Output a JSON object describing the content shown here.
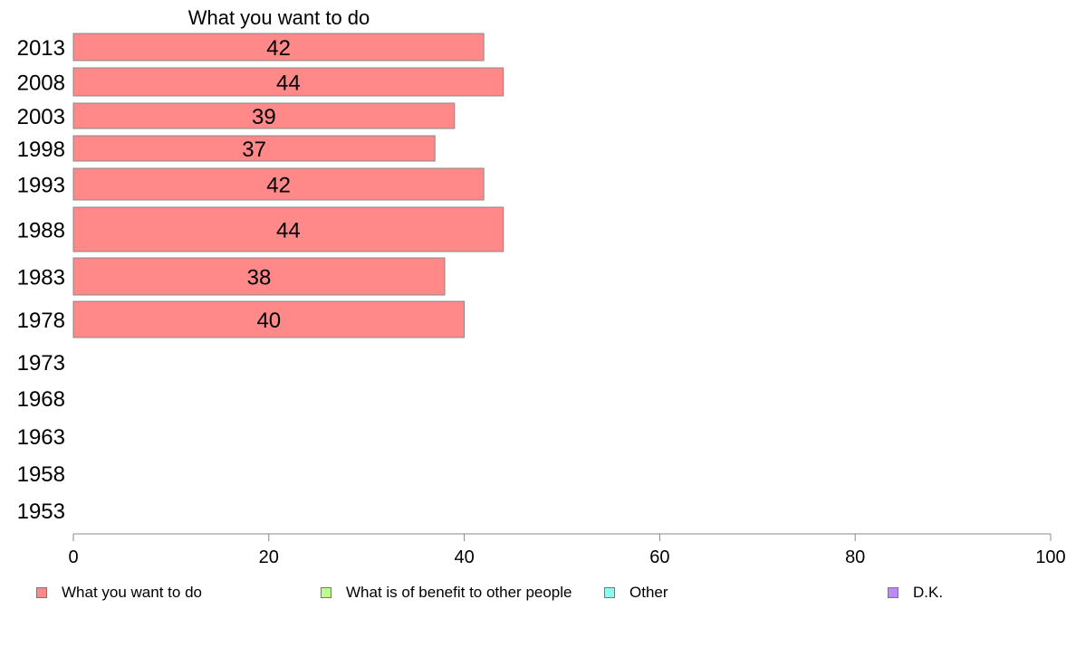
{
  "chart_data": {
    "type": "bar",
    "orientation": "horizontal",
    "title": "What you want to do",
    "categories": [
      "2013",
      "2008",
      "2003",
      "1998",
      "1993",
      "1988",
      "1983",
      "1978",
      "1973",
      "1968",
      "1963",
      "1958",
      "1953"
    ],
    "series": [
      {
        "name": "What you want to do",
        "color": "#ff8888",
        "values": [
          42,
          44,
          39,
          37,
          42,
          44,
          38,
          40,
          null,
          null,
          null,
          null,
          null
        ]
      }
    ],
    "xlim": [
      0,
      100
    ],
    "xticks": [
      0,
      20,
      40,
      60,
      80,
      100
    ],
    "grid": false,
    "legend": {
      "position": "bottom",
      "items": [
        {
          "label": "What you want to do",
          "color": "#ff8888"
        },
        {
          "label": "What is of benefit to other people",
          "color": "#bbff88"
        },
        {
          "label": "Other",
          "color": "#88ffee"
        },
        {
          "label": "D.K.",
          "color": "#bb88ff"
        }
      ]
    }
  }
}
